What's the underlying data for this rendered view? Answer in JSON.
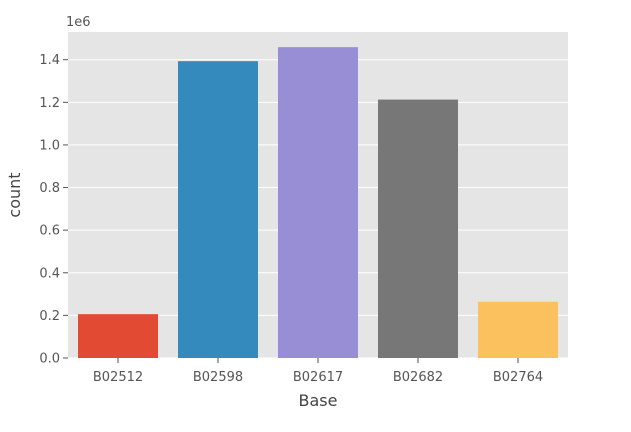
{
  "chart_data": {
    "type": "bar",
    "title": "",
    "xlabel": "Base",
    "ylabel": "count",
    "y_multiplier_label": "1e6",
    "categories": [
      "B02512",
      "B02598",
      "B02617",
      "B02682",
      "B02764"
    ],
    "values": [
      205673,
      1393113,
      1458853,
      1212789,
      263899
    ],
    "colors": [
      "#E24A33",
      "#348ABD",
      "#988ED5",
      "#777777",
      "#FBC15E"
    ],
    "ylim": [
      0,
      1530000
    ],
    "yticks": [
      0.0,
      0.2,
      0.4,
      0.6,
      0.8,
      1.0,
      1.2,
      1.4
    ],
    "ytick_labels": [
      "0.0",
      "0.2",
      "0.4",
      "0.6",
      "0.8",
      "1.0",
      "1.2",
      "1.4"
    ],
    "background": "#E5E5E5",
    "grid": true,
    "grid_color": "#FFFFFF",
    "style": "ggplot"
  }
}
